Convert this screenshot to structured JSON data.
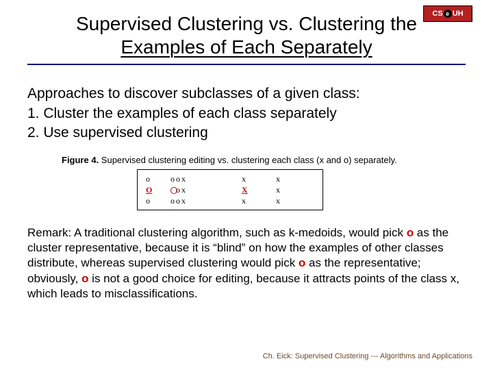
{
  "logo": {
    "left": "CS",
    "right": "UH"
  },
  "title": {
    "line1": "Supervised Clustering vs. Clustering the",
    "line2": "Examples of Each Separately"
  },
  "approaches": {
    "intro": "Approaches to discover subclasses of a given class:",
    "item1": "1. Cluster the examples of each class separately",
    "item2": "2. Use supervised clustering"
  },
  "figure": {
    "caption_bold": "Figure 4.",
    "caption_rest": " Supervised clustering editing vs. clustering each class (x and o) separately.",
    "sym_o": "o",
    "sym_x": "x",
    "sym_O_red": "O",
    "sym_X_red": "X"
  },
  "remark": {
    "pre": "Remark: A traditional clustering algorithm, such as k-medoids, would pick ",
    "o1": "o",
    "mid1": " as the cluster representative, because it is “blind” on how the examples of other classes distribute, whereas supervised clustering would pick ",
    "o2": "o",
    "mid2": " as the representative; obviously, ",
    "o3": "o",
    "post": " is not a good choice for editing, because it attracts points of the class x, which leads to misclassifications."
  },
  "footer": "Ch. Eick: Supervised Clustering --- Algorithms and Applications",
  "colors": {
    "rule": "#000080",
    "accent": "#cc0000",
    "footer": "#6b4a2a",
    "logo_bg": "#b22222"
  }
}
